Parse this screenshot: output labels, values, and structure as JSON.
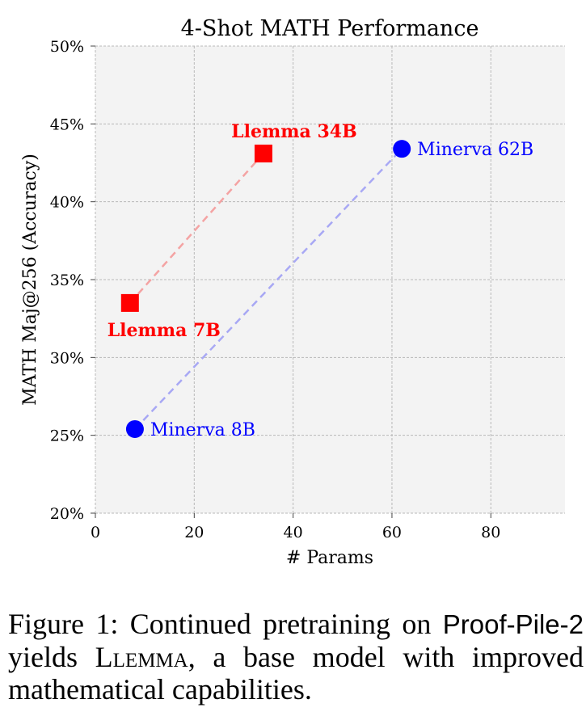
{
  "chart_data": {
    "type": "scatter",
    "title": "4-Shot MATH Performance",
    "xlabel": "# Params",
    "ylabel": "MATH Maj@256 (Accuracy)",
    "xlim": [
      0,
      95
    ],
    "ylim": [
      20,
      50
    ],
    "xticks": [
      0,
      20,
      40,
      60,
      80
    ],
    "xtick_labels": [
      "0",
      "20",
      "40",
      "60",
      "80"
    ],
    "yticks": [
      20,
      25,
      30,
      35,
      40,
      45,
      50
    ],
    "ytick_labels": [
      "20%",
      "25%",
      "30%",
      "35%",
      "40%",
      "45%",
      "50%"
    ],
    "grid": true,
    "series": [
      {
        "name": "Llemma",
        "color": "#ff0000",
        "line_color": "#f4a3a3",
        "marker": "square",
        "points": [
          {
            "x": 7,
            "y": 33.5,
            "label": "Llemma 7B",
            "label_pos": "below"
          },
          {
            "x": 34,
            "y": 43.1,
            "label": "Llemma 34B",
            "label_pos": "above"
          }
        ]
      },
      {
        "name": "Minerva",
        "color": "#0000ff",
        "line_color": "#a8a8f4",
        "marker": "circle",
        "points": [
          {
            "x": 8,
            "y": 25.4,
            "label": "Minerva 8B",
            "label_pos": "right"
          },
          {
            "x": 62,
            "y": 43.4,
            "label": "Minerva 62B",
            "label_pos": "right"
          }
        ]
      }
    ]
  },
  "caption": {
    "prefix": "Figure 1:  Continued pretraining on ",
    "dataset": "Proof-Pile-2",
    "middle": " yields ",
    "model": "Llemma",
    "suffix": ", a base model with improved mathematical capabilities."
  }
}
